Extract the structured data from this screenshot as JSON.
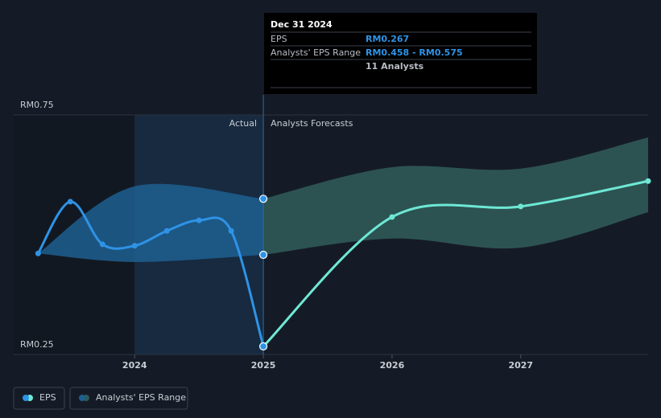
{
  "chart_data": {
    "type": "line",
    "xlim": [
      2023.06,
      2027.99
    ],
    "ylim": [
      0.25,
      0.75
    ],
    "xticks": [
      2024,
      2025,
      2026,
      2027
    ],
    "yticks": [
      {
        "value": 0.25,
        "label": "RM0.25"
      },
      {
        "value": 0.75,
        "label": "RM0.75"
      }
    ],
    "grid": true,
    "divider": 2025,
    "actual_label": "Actual",
    "forecast_label": "Analysts Forecasts",
    "series": [
      {
        "name": "EPS",
        "color": "#2e93e6",
        "forecast_color": "#6ee8d5",
        "x": [
          2023.25,
          2023.5,
          2023.75,
          2024.0,
          2024.25,
          2024.5,
          2024.75,
          2025.0,
          2026.0,
          2027.0,
          2027.99
        ],
        "values": [
          0.461,
          0.569,
          0.48,
          0.477,
          0.508,
          0.53,
          0.508,
          0.267,
          0.537,
          0.559,
          0.612
        ]
      },
      {
        "name": "Analysts' EPS Range",
        "color": "#1f5f91",
        "forecast_color": "#2f5a58",
        "x": [
          2023.25,
          2024.0,
          2025.0,
          2026.0,
          2027.0,
          2027.99
        ],
        "high": [
          0.461,
          0.601,
          0.575,
          0.641,
          0.638,
          0.703
        ],
        "low": [
          0.461,
          0.443,
          0.458,
          0.492,
          0.473,
          0.547
        ]
      }
    ],
    "tooltip": {
      "date": "Dec 31 2024",
      "rows": [
        {
          "label": "EPS",
          "value": "RM0.267"
        },
        {
          "label": "Analysts' EPS Range",
          "value": "RM0.458 - RM0.575"
        },
        {
          "label": "",
          "value": "11 Analysts"
        }
      ]
    }
  }
}
